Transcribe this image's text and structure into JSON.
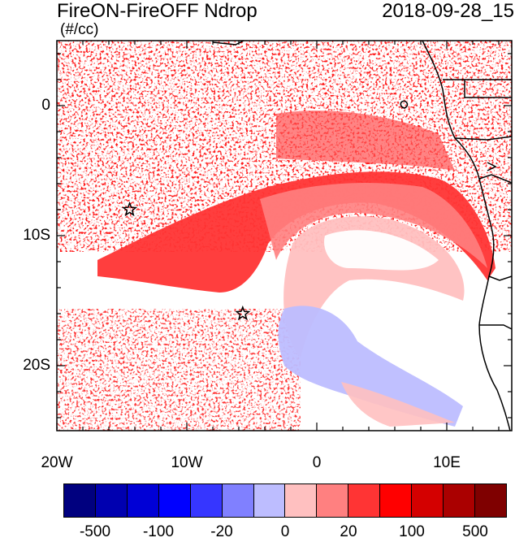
{
  "title": {
    "left": "FireON-FireOFF Ndrop",
    "right": "2018-09-28_15",
    "units": "(#/cc)"
  },
  "axes": {
    "y_ticks": [
      {
        "label": "0",
        "lat": 0
      },
      {
        "label": "10S",
        "lat": -10
      },
      {
        "label": "20S",
        "lat": -20
      }
    ],
    "x_ticks": [
      {
        "label": "20W",
        "lon": -20
      },
      {
        "label": "10W",
        "lon": -10
      },
      {
        "label": "0",
        "lon": 0
      },
      {
        "label": "10E",
        "lon": 10
      }
    ]
  },
  "map": {
    "lon_range": [
      -20,
      15
    ],
    "lat_range": [
      -25,
      5
    ],
    "markers": [
      {
        "name": "station-star-1",
        "lon": -14.4,
        "lat": -8.0,
        "symbol": "star"
      },
      {
        "name": "station-star-2",
        "lon": -5.7,
        "lat": -16.0,
        "symbol": "star"
      }
    ]
  },
  "colorbar": {
    "colors": [
      "#00007f",
      "#0000b0",
      "#0000d6",
      "#0000ff",
      "#3636ff",
      "#8080ff",
      "#bdbdff",
      "#ffc0c0",
      "#ff8080",
      "#ff3434",
      "#ff0000",
      "#d40000",
      "#aa0000",
      "#7f0000"
    ],
    "labels": [
      {
        "text": "-500",
        "boundary": 1
      },
      {
        "text": "-100",
        "boundary": 3
      },
      {
        "text": "-20",
        "boundary": 5
      },
      {
        "text": "0",
        "boundary": 7
      },
      {
        "text": "20",
        "boundary": 9
      },
      {
        "text": "100",
        "boundary": 11
      },
      {
        "text": "500",
        "boundary": 13
      }
    ]
  }
}
